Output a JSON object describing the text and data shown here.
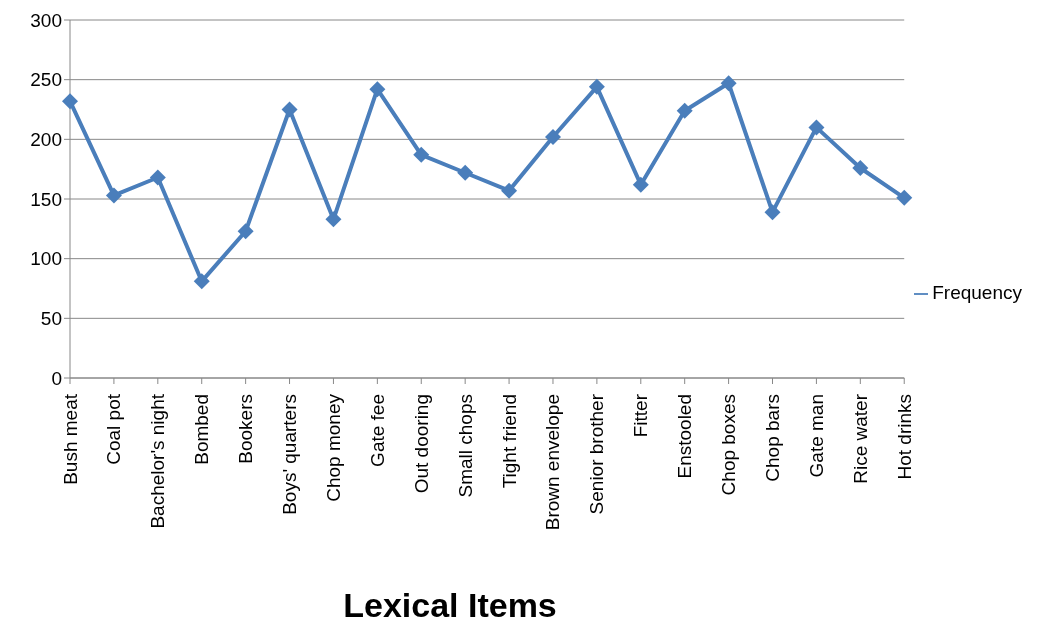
{
  "chart_data": {
    "type": "line",
    "xlabel": "Lexical Items",
    "categories": [
      "Bush meat",
      "Coal pot",
      "Bachelor's night",
      "Bombed",
      "Bookers",
      "Boys' quarters",
      "Chop money",
      "Gate fee",
      "Out dooring",
      "Small chops",
      "Tight friend",
      "Brown envelope",
      "Senior brother",
      "Fitter",
      "Enstooled",
      "Chop boxes",
      "Chop bars",
      "Gate  man",
      "Rice water",
      "Hot drinks"
    ],
    "series": [
      {
        "name": "Frequency",
        "color": "#4a7ebb",
        "values": [
          232,
          153,
          168,
          81,
          123,
          225,
          133,
          242,
          187,
          172,
          157,
          202,
          244,
          162,
          224,
          247,
          139,
          210,
          176,
          151
        ]
      }
    ],
    "ylim": [
      0,
      300
    ],
    "yticks": [
      0,
      50,
      100,
      150,
      200,
      250,
      300
    ],
    "grid": "y",
    "legend": "right",
    "marker": "diamond",
    "line_style": "solid"
  }
}
